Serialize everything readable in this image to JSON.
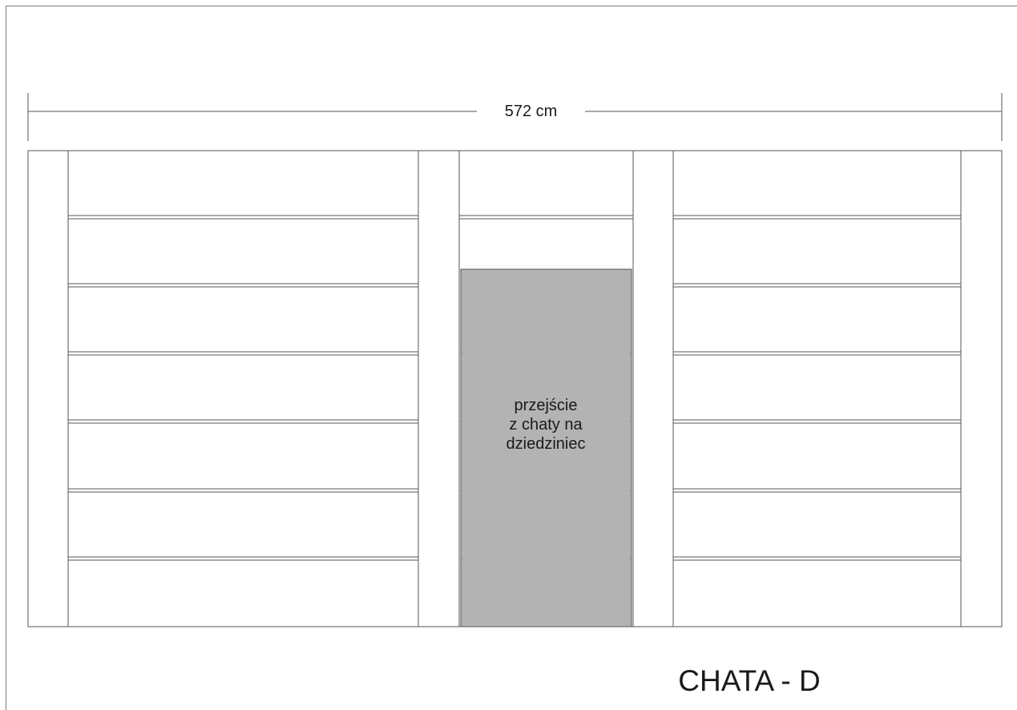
{
  "dimension": {
    "width_label": "572 cm"
  },
  "door": {
    "label_lines": [
      "przejście",
      "z chaty na",
      "dziedziniec"
    ],
    "fill_color": "#b3b3b3"
  },
  "title": "CHATA - D",
  "colors": {
    "line": "#555555",
    "door_fill": "#b3b3b3"
  }
}
